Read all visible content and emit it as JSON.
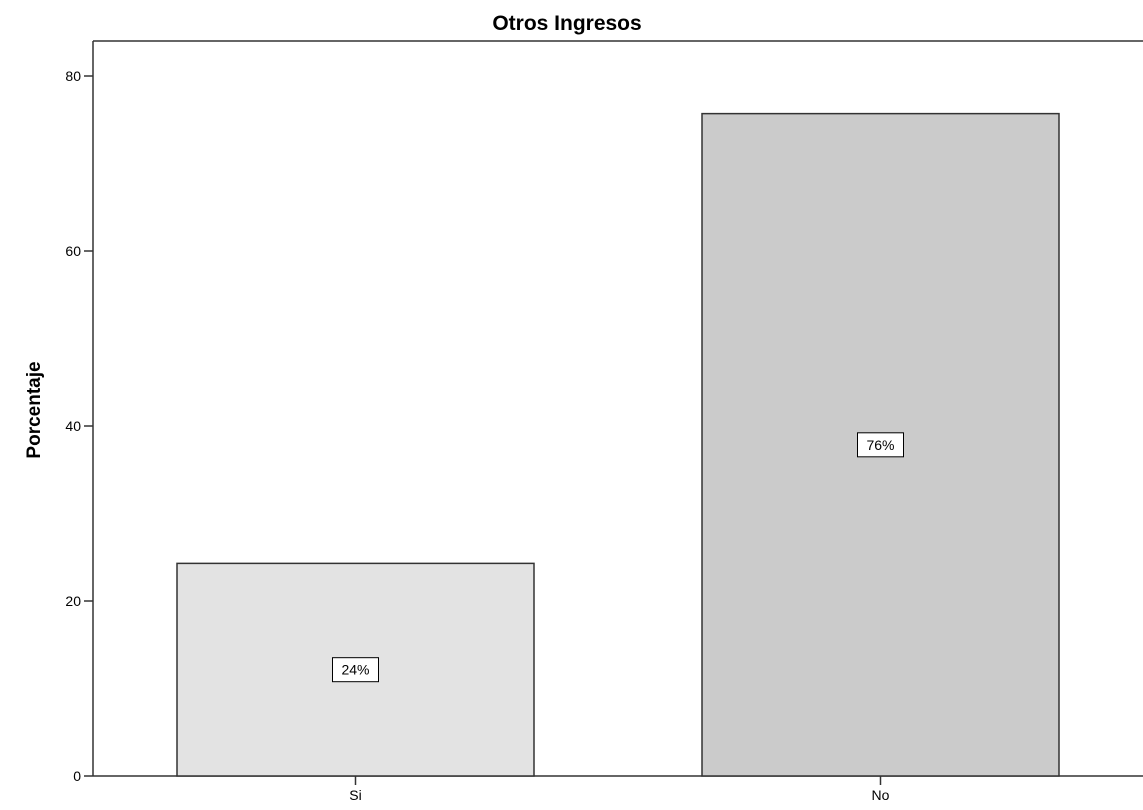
{
  "chart_data": {
    "type": "bar",
    "title": "Otros Ingresos",
    "xlabel": "",
    "ylabel": "Porcentaje",
    "categories": [
      "Si",
      "No"
    ],
    "values": [
      24.3,
      75.7
    ],
    "data_labels": [
      "24%",
      "76%"
    ],
    "ylim": [
      0,
      84
    ],
    "yticks": [
      0,
      20,
      40,
      60,
      80
    ],
    "grid": false,
    "legend": "none",
    "colors": [
      "#e3e3e3",
      "#cbcbcb"
    ],
    "edge_color": "#333333"
  }
}
